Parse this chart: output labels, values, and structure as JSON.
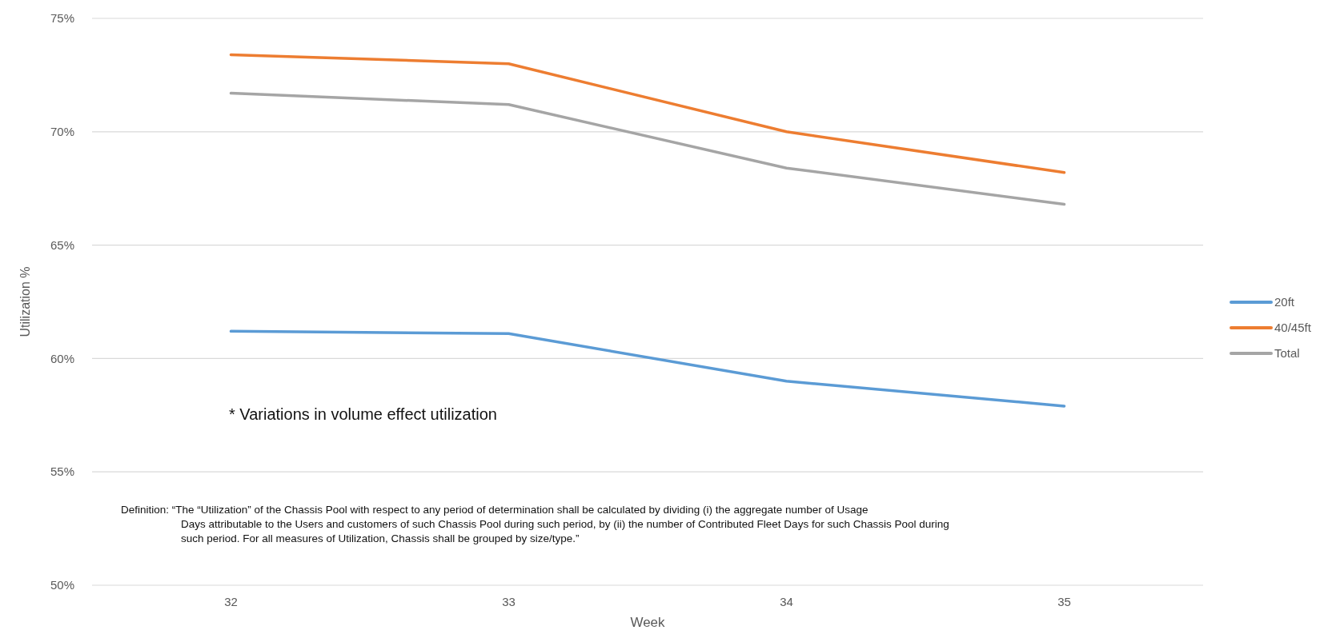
{
  "chart_data": {
    "type": "line",
    "xlabel": "Week",
    "ylabel": "Utilization %",
    "categories": [
      "32",
      "33",
      "34",
      "35"
    ],
    "series": [
      {
        "name": "20ft",
        "color": "#5b9bd5",
        "values": [
          61.2,
          61.1,
          59.0,
          57.9
        ]
      },
      {
        "name": "40/45ft",
        "color": "#ed7d31",
        "values": [
          73.4,
          73.0,
          70.0,
          68.2
        ]
      },
      {
        "name": "Total",
        "color": "#a5a5a5",
        "values": [
          71.7,
          71.2,
          68.4,
          66.8
        ]
      }
    ],
    "ylim": [
      50,
      75
    ],
    "yticks": [
      {
        "value": 50,
        "label": "50%"
      },
      {
        "value": 55,
        "label": "55%"
      },
      {
        "value": 60,
        "label": "60%"
      },
      {
        "value": 65,
        "label": "65%"
      },
      {
        "value": 70,
        "label": "70%"
      },
      {
        "value": 75,
        "label": "75%"
      }
    ],
    "grid": "y",
    "legend": "right",
    "marker": "none",
    "line_style": "solid",
    "annotations": [
      "* Variations in volume effect utilization",
      "Definition: “The “Utilization” of the Chassis Pool with respect to any period of determination shall be calculated by dividing (i) the aggregate number of Usage Days attributable to the Users and customers of such Chassis Pool during such period, by (ii) the number of Contributed Fleet Days for such Chassis Pool during such period.  For all measures of Utilization, Chassis shall be grouped by size/type.”"
    ]
  }
}
